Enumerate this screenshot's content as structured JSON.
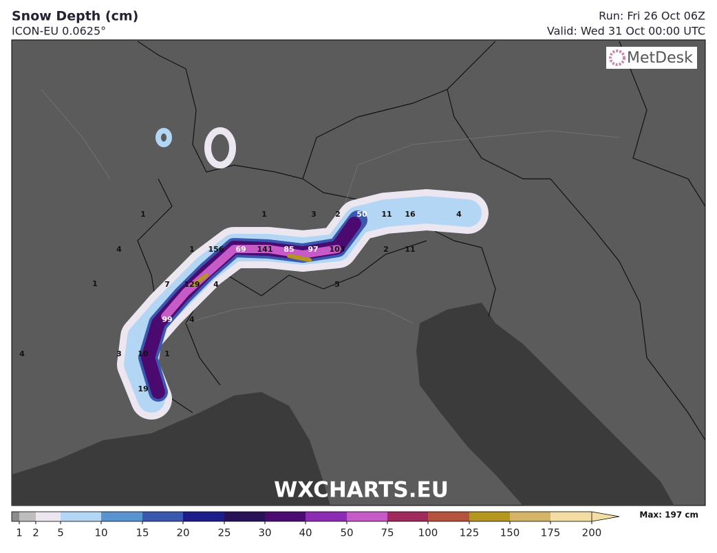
{
  "header": {
    "title": "Snow Depth (cm)",
    "subtitle": "ICON-EU 0.0625°",
    "run": "Run: Fri 26 Oct 06Z",
    "valid": "Valid: Wed 31 Oct 00:00 UTC"
  },
  "logo": "MetDesk",
  "watermark": "WXCHARTS.EU",
  "map_labels": [
    "1",
    "4",
    "1",
    "4",
    "1",
    "3",
    "2",
    "50",
    "11",
    "16",
    "4",
    "1",
    "156",
    "69",
    "141",
    "85",
    "97",
    "103",
    "2",
    "11",
    "7",
    "129",
    "4",
    "5",
    "99",
    "4",
    "3",
    "10",
    "1",
    "19"
  ],
  "legend": {
    "colors": [
      "#8c8c8c",
      "#bdbdbd",
      "#ece6f0",
      "#b3d6f5",
      "#5a94d0",
      "#3a58b0",
      "#1c1c8a",
      "#2a1258",
      "#4a0a70",
      "#8c2cb4",
      "#c65ac6",
      "#a02a5c",
      "#b4543e",
      "#b49620",
      "#d4b466",
      "#f2dea2"
    ],
    "ticks": [
      1,
      2,
      5,
      10,
      15,
      20,
      25,
      30,
      40,
      50,
      75,
      100,
      125,
      150,
      175,
      200
    ],
    "max_label": "Max: 197 cm"
  }
}
